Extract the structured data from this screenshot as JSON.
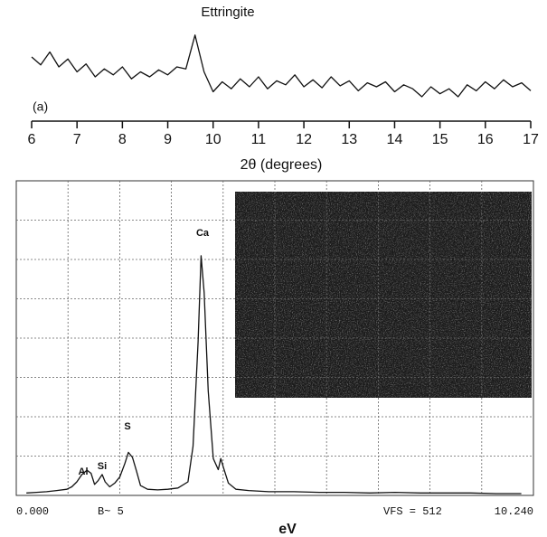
{
  "chart_data": [
    {
      "type": "line",
      "annotation": "Ettringite",
      "panel_label": "(a)",
      "xlabel": "2θ (degrees)",
      "x": [
        6.0,
        6.2,
        6.4,
        6.6,
        6.8,
        7.0,
        7.2,
        7.4,
        7.6,
        7.8,
        8.0,
        8.2,
        8.4,
        8.6,
        8.8,
        9.0,
        9.2,
        9.4,
        9.6,
        9.8,
        10.0,
        10.2,
        10.4,
        10.6,
        10.8,
        11.0,
        11.2,
        11.4,
        11.6,
        11.8,
        12.0,
        12.2,
        12.4,
        12.6,
        12.8,
        13.0,
        13.2,
        13.4,
        13.6,
        13.8,
        14.0,
        14.2,
        14.4,
        14.6,
        14.8,
        15.0,
        15.2,
        15.4,
        15.6,
        15.8,
        16.0,
        16.2,
        16.4,
        16.6,
        16.8,
        17.0
      ],
      "values": [
        70,
        62,
        75,
        60,
        68,
        55,
        63,
        50,
        58,
        52,
        60,
        48,
        55,
        50,
        57,
        52,
        60,
        58,
        92,
        55,
        35,
        45,
        38,
        48,
        40,
        50,
        38,
        46,
        42,
        52,
        40,
        47,
        39,
        50,
        41,
        46,
        36,
        44,
        40,
        45,
        35,
        42,
        38,
        30,
        40,
        33,
        38,
        30,
        42,
        36,
        45,
        38,
        47,
        40,
        44,
        36
      ],
      "color": "#111111",
      "xlim": [
        6,
        17
      ],
      "xticks": [
        6,
        7,
        8,
        9,
        10,
        11,
        12,
        13,
        14,
        15,
        16,
        17
      ],
      "ylim": [
        0,
        100
      ]
    },
    {
      "type": "line",
      "xlabel": "eV",
      "footer_left": "B~ 5",
      "footer_right": "VFS = 512",
      "peak_labels": [
        "Al",
        "Si",
        "S",
        "Ca"
      ],
      "x": [
        0.2,
        0.4,
        0.6,
        0.8,
        1.0,
        1.1,
        1.2,
        1.3,
        1.4,
        1.48,
        1.55,
        1.62,
        1.7,
        1.76,
        1.85,
        1.95,
        2.05,
        2.15,
        2.22,
        2.3,
        2.38,
        2.46,
        2.6,
        2.8,
        3.0,
        3.2,
        3.4,
        3.5,
        3.6,
        3.66,
        3.72,
        3.8,
        3.9,
        4.0,
        4.05,
        4.1,
        4.2,
        4.35,
        4.6,
        5.0,
        5.5,
        6.0,
        6.5,
        7.0,
        7.5,
        8.0,
        8.5,
        9.0,
        9.5,
        10.0
      ],
      "values": [
        4,
        5,
        6,
        8,
        10,
        14,
        22,
        34,
        41,
        36,
        18,
        24,
        34,
        22,
        14,
        20,
        30,
        52,
        70,
        62,
        40,
        16,
        10,
        9,
        10,
        12,
        22,
        80,
        250,
        390,
        330,
        170,
        60,
        42,
        60,
        46,
        20,
        10,
        8,
        6,
        6,
        5,
        5,
        4,
        5,
        4,
        4,
        4,
        3,
        3
      ],
      "color": "#111111",
      "xlim": [
        0,
        10.24
      ],
      "xticks": [
        {
          "value": 0,
          "label": "0.000"
        },
        {
          "value": 10.24,
          "label": "10.240"
        }
      ],
      "xgrid": [
        1.024,
        2.048,
        3.072,
        4.096,
        5.12,
        6.144,
        7.168,
        8.192,
        9.216
      ],
      "ylim": [
        0,
        512
      ],
      "ygrid": [
        64,
        128,
        192,
        256,
        320,
        384,
        448
      ],
      "grid": true
    }
  ]
}
